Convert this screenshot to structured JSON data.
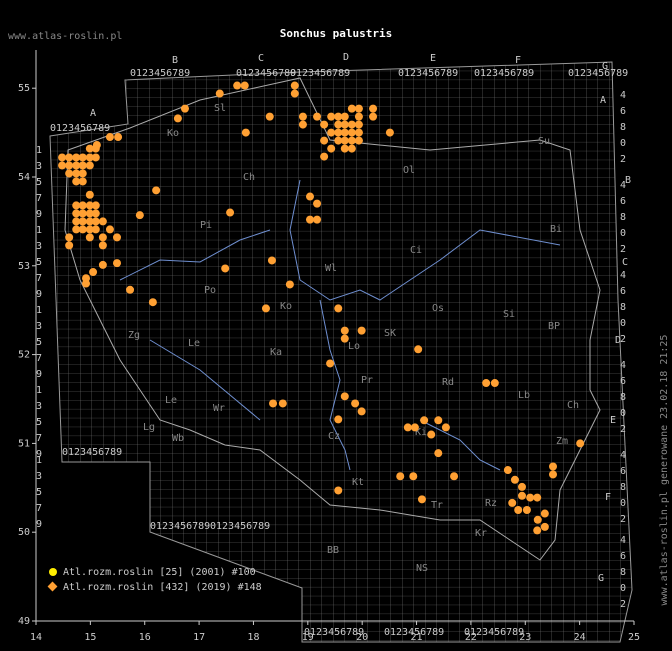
{
  "header": {
    "title": "Sonchus palustris",
    "site": "www.atlas-roslin.pl",
    "credit": "www.atlas-roslin.pl generowane 23.02.18 21:25"
  },
  "grid": {
    "letters": [
      "A",
      "B",
      "C",
      "D",
      "E",
      "F",
      "G"
    ],
    "digits": "0123456789",
    "odd_rows": [
      "1",
      "3",
      "5",
      "7",
      "9"
    ],
    "even_rows": [
      "4",
      "6",
      "8",
      "0",
      "2"
    ]
  },
  "map": {
    "regions": [
      "Sl",
      "Ko",
      "Ch",
      "Ol",
      "Su",
      "Bi",
      "Pi",
      "Wl",
      "Ci",
      "Os",
      "Si",
      "BP",
      "Zg",
      "Le",
      "Po",
      "Ko",
      "Ka",
      "Lo",
      "SK",
      "Pr",
      "Rd",
      "Lb",
      "Ch",
      "Zm",
      "Le",
      "Wr",
      "Cz",
      "Ki",
      "Wb",
      "Lg",
      "Kt",
      "Tr",
      "Rz",
      "BB",
      "NS",
      "Kr"
    ]
  },
  "chart_data": {
    "type": "scatter",
    "xlim": [
      14,
      25
    ],
    "xticks": [
      14,
      15,
      16,
      17,
      18,
      19,
      20,
      21,
      22,
      23,
      24,
      25
    ],
    "ylim": [
      49,
      55.43
    ],
    "yticks": [
      49,
      50,
      51,
      52,
      53,
      54,
      55
    ],
    "series": [
      {
        "name": "Atl.rozm.roslin [25] (2001) #100",
        "color": "#ffee00",
        "marker": "circle",
        "x": [],
        "values": []
      },
      {
        "name": "Atl.rozm.roslin [432] (2019) #148",
        "color": "#ffa033",
        "marker": "diamond",
        "x": [
          14.48,
          14.61,
          14.74,
          14.86,
          14.99,
          15.1,
          14.99,
          15.1,
          15.12,
          15.36,
          15.51,
          14.48,
          14.61,
          14.74,
          14.86,
          14.99,
          14.61,
          14.74,
          14.86,
          14.74,
          14.86,
          14.99,
          14.74,
          14.86,
          14.99,
          15.1,
          14.74,
          14.86,
          14.99,
          15.1,
          14.74,
          14.86,
          14.99,
          15.1,
          15.23,
          14.74,
          14.86,
          14.99,
          15.1,
          15.36,
          14.61,
          14.99,
          15.23,
          15.49,
          14.61,
          15.23,
          15.49,
          15.23,
          15.05,
          14.92,
          14.92,
          15.73,
          15.91,
          16.21,
          16.15,
          16.61,
          16.74,
          17.38,
          17.7,
          17.84,
          18.76,
          18.76,
          18.3,
          17.86,
          17.57,
          17.48,
          18.34,
          18.67,
          18.23,
          18.91,
          18.91,
          19.17,
          19.3,
          19.43,
          19.56,
          19.68,
          19.81,
          19.94,
          20.2,
          19.94,
          20.2,
          19.56,
          19.68,
          19.81,
          19.94,
          19.43,
          19.56,
          19.68,
          19.81,
          19.94,
          19.3,
          19.56,
          19.68,
          19.81,
          19.94,
          19.43,
          19.68,
          19.81,
          19.3,
          20.51,
          19.04,
          19.17,
          19.04,
          19.17,
          19.56,
          19.68,
          19.68,
          19.99,
          19.41,
          21.03,
          19.68,
          19.87,
          19.99,
          19.56,
          18.36,
          18.54,
          22.28,
          22.44,
          20.84,
          20.97,
          21.14,
          21.27,
          21.4,
          21.54,
          21.4,
          20.7,
          20.94,
          21.69,
          19.56,
          21.1,
          22.68,
          22.81,
          22.94,
          22.94,
          22.76,
          23.09,
          22.87,
          23.03,
          23.22,
          23.36,
          23.23,
          23.36,
          23.22,
          23.51,
          23.51,
          24.01
        ],
        "values": [
          54.22,
          54.22,
          54.22,
          54.22,
          54.22,
          54.22,
          54.32,
          54.32,
          54.36,
          54.45,
          54.45,
          54.13,
          54.13,
          54.13,
          54.13,
          54.13,
          54.04,
          54.04,
          54.04,
          53.95,
          53.95,
          53.8,
          53.68,
          53.68,
          53.68,
          53.68,
          53.59,
          53.59,
          53.59,
          53.59,
          53.5,
          53.5,
          53.5,
          53.5,
          53.5,
          53.41,
          53.41,
          53.41,
          53.41,
          53.41,
          53.32,
          53.32,
          53.32,
          53.32,
          53.23,
          53.23,
          53.03,
          53.01,
          52.93,
          52.86,
          52.8,
          52.73,
          53.57,
          53.85,
          52.59,
          54.66,
          54.77,
          54.94,
          55.03,
          55.03,
          55.03,
          54.94,
          54.68,
          54.5,
          53.6,
          52.97,
          53.06,
          52.79,
          52.52,
          54.68,
          54.59,
          54.68,
          54.59,
          54.68,
          54.68,
          54.68,
          54.77,
          54.77,
          54.77,
          54.68,
          54.68,
          54.59,
          54.59,
          54.59,
          54.59,
          54.5,
          54.5,
          54.5,
          54.5,
          54.5,
          54.41,
          54.41,
          54.41,
          54.41,
          54.41,
          54.32,
          54.32,
          54.32,
          54.23,
          54.5,
          53.78,
          53.7,
          53.52,
          53.52,
          52.52,
          52.27,
          52.18,
          52.27,
          51.9,
          52.06,
          51.53,
          51.45,
          51.36,
          51.27,
          51.45,
          51.45,
          51.68,
          51.68,
          51.18,
          51.18,
          51.26,
          51.1,
          51.26,
          51.18,
          50.89,
          50.63,
          50.63,
          50.63,
          50.47,
          50.37,
          50.7,
          50.59,
          50.51,
          50.41,
          50.33,
          50.39,
          50.25,
          50.25,
          50.39,
          50.21,
          50.14,
          50.06,
          50.02,
          50.74,
          50.65,
          51.0
        ]
      }
    ]
  }
}
